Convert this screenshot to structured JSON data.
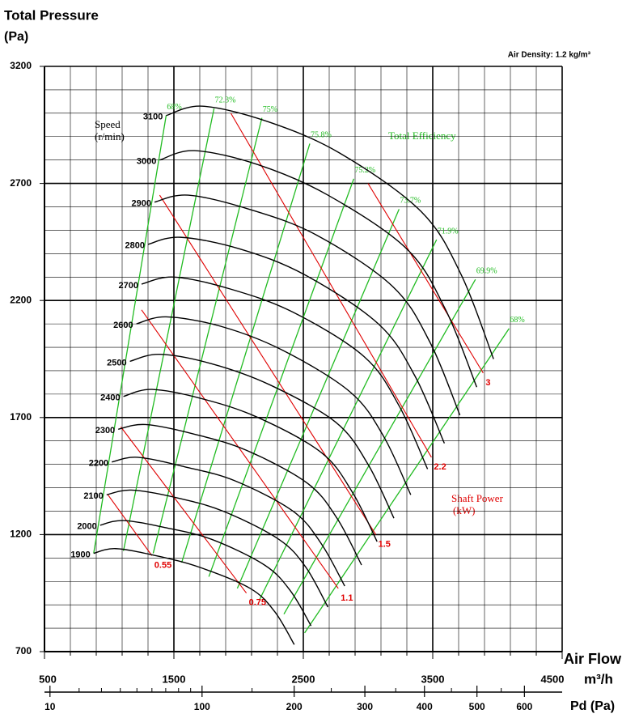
{
  "chart_data": {
    "type": "line",
    "title": "Total Pressure",
    "y_unit": "(Pa)",
    "note": "Air Density: 1.2 kg/m³",
    "x_label": "Air Flow",
    "x_unit": "m³/h",
    "xlim": [
      500,
      4500
    ],
    "xticks": [
      500,
      1500,
      2500,
      3500,
      4500
    ],
    "x_grid": [
      500,
      700,
      900,
      1100,
      1300,
      1500,
      1700,
      1900,
      2100,
      2300,
      2500,
      2700,
      2900,
      3100,
      3300,
      3500,
      3700,
      3900,
      4100,
      4300,
      4500
    ],
    "ylim": [
      700,
      3200
    ],
    "yticks": [
      700,
      1200,
      1700,
      2200,
      2700,
      3200
    ],
    "y_grid": [
      700,
      800,
      900,
      1000,
      1100,
      1200,
      1300,
      1400,
      1500,
      1600,
      1700,
      1800,
      1900,
      2000,
      2100,
      2200,
      2300,
      2400,
      2500,
      2600,
      2700,
      2800,
      2900,
      3000,
      3100,
      3200
    ],
    "speed_title": "Speed",
    "speed_unit": "(r/min)",
    "series": [
      {
        "name": "1900",
        "color": "#000000",
        "x": [
          880,
          1050,
          1360,
          1700,
          2090,
          2280,
          2430
        ],
        "values": [
          1120,
          1140,
          1110,
          1060,
          970,
          870,
          730
        ]
      },
      {
        "name": "2000",
        "color": "#000000",
        "x": [
          930,
          1110,
          1430,
          1790,
          2200,
          2400,
          2560
        ],
        "values": [
          1240,
          1260,
          1230,
          1180,
          1070,
          960,
          810
        ]
      },
      {
        "name": "2100",
        "color": "#000000",
        "x": [
          980,
          1170,
          1500,
          1880,
          2310,
          2520,
          2690
        ],
        "values": [
          1370,
          1390,
          1360,
          1300,
          1180,
          1060,
          890
        ]
      },
      {
        "name": "2200",
        "color": "#000000",
        "x": [
          1020,
          1220,
          1580,
          1970,
          2420,
          2640,
          2820
        ],
        "values": [
          1510,
          1530,
          1490,
          1430,
          1300,
          1160,
          980
        ]
      },
      {
        "name": "2300",
        "color": "#000000",
        "x": [
          1070,
          1280,
          1650,
          2060,
          2530,
          2760,
          2950
        ],
        "values": [
          1650,
          1670,
          1630,
          1560,
          1420,
          1270,
          1070
        ]
      },
      {
        "name": "2400",
        "color": "#000000",
        "x": [
          1110,
          1330,
          1720,
          2150,
          2640,
          2880,
          3070
        ],
        "values": [
          1790,
          1820,
          1780,
          1700,
          1550,
          1380,
          1170
        ]
      },
      {
        "name": "2500",
        "color": "#000000",
        "x": [
          1160,
          1390,
          1790,
          2240,
          2750,
          3000,
          3200
        ],
        "values": [
          1940,
          1970,
          1930,
          1840,
          1680,
          1500,
          1270
        ]
      },
      {
        "name": "2600",
        "color": "#000000",
        "x": [
          1210,
          1440,
          1860,
          2330,
          2860,
          3120,
          3330
        ],
        "values": [
          2100,
          2130,
          2090,
          1990,
          1810,
          1620,
          1370
        ]
      },
      {
        "name": "2700",
        "color": "#000000",
        "x": [
          1250,
          1500,
          1930,
          2420,
          2970,
          3240,
          3460
        ],
        "values": [
          2270,
          2300,
          2250,
          2150,
          1960,
          1750,
          1480
        ]
      },
      {
        "name": "2800",
        "color": "#000000",
        "x": [
          1300,
          1550,
          2010,
          2510,
          3080,
          3360,
          3590
        ],
        "values": [
          2440,
          2470,
          2420,
          2310,
          2100,
          1880,
          1590
        ]
      },
      {
        "name": "2900",
        "color": "#000000",
        "x": [
          1350,
          1610,
          2080,
          2600,
          3190,
          3480,
          3710
        ],
        "values": [
          2620,
          2650,
          2590,
          2480,
          2260,
          2020,
          1710
        ]
      },
      {
        "name": "3000",
        "color": "#000000",
        "x": [
          1390,
          1660,
          2150,
          2690,
          3300,
          3600,
          3840
        ],
        "values": [
          2800,
          2840,
          2780,
          2650,
          2420,
          2160,
          1830
        ]
      },
      {
        "name": "3100",
        "color": "#000000",
        "x": [
          1440,
          1720,
          2220,
          2780,
          3410,
          3720,
          3970
        ],
        "values": [
          2990,
          3030,
          2965,
          2830,
          2580,
          2310,
          1950
        ]
      }
    ],
    "efficiency": {
      "title": "Total Efficiency",
      "color": "#22bb22",
      "lines": [
        {
          "label": "68%",
          "x": [
            880,
            1440
          ],
          "y": [
            1120,
            2990
          ]
        },
        {
          "label": "72.3%",
          "x": [
            1110,
            1810
          ],
          "y": [
            1130,
            3020
          ]
        },
        {
          "label": "75%",
          "x": [
            1340,
            2180
          ],
          "y": [
            1120,
            2980
          ]
        },
        {
          "label": "75.8%",
          "x": [
            1560,
            2550
          ],
          "y": [
            1080,
            2870
          ]
        },
        {
          "label": "75.2%",
          "x": [
            1770,
            2890
          ],
          "y": [
            1020,
            2720
          ]
        },
        {
          "label": "73.7%",
          "x": [
            1990,
            3240
          ],
          "y": [
            970,
            2590
          ]
        },
        {
          "label": "71.9%",
          "x": [
            2160,
            3530
          ],
          "y": [
            920,
            2460
          ]
        },
        {
          "label": "69.9%",
          "x": [
            2350,
            3830
          ],
          "y": [
            860,
            2290
          ]
        },
        {
          "label": "68%",
          "x": [
            2510,
            4090
          ],
          "y": [
            780,
            2080
          ]
        }
      ]
    },
    "shaft_power": {
      "title": "Shaft Power",
      "unit": "(kW)",
      "color": "#e00000",
      "lines": [
        {
          "value": 0.55,
          "x": [
            990,
            1330
          ],
          "y": [
            1370,
            1110
          ]
        },
        {
          "value": 0.75,
          "x": [
            1090,
            2060
          ],
          "y": [
            1660,
            950
          ]
        },
        {
          "value": 1.1,
          "x": [
            1250,
            2770
          ],
          "y": [
            2160,
            970
          ]
        },
        {
          "value": 1.5,
          "x": [
            1390,
            3060
          ],
          "y": [
            2650,
            1200
          ]
        },
        {
          "value": 2.2,
          "x": [
            1940,
            3490
          ],
          "y": [
            3000,
            1530
          ]
        },
        {
          "value": 3,
          "x": [
            3000,
            3890
          ],
          "y": [
            2700,
            1890
          ]
        }
      ]
    },
    "x2": {
      "label": "Pd (Pa)",
      "scale": "sqrt",
      "xlim": [
        8.5,
        686
      ],
      "xticks": [
        10,
        100,
        200,
        300,
        400,
        500,
        600
      ],
      "minor_ticks": [
        20,
        30,
        40,
        50,
        60,
        70,
        80,
        90,
        150,
        250,
        350,
        450,
        550
      ]
    }
  }
}
